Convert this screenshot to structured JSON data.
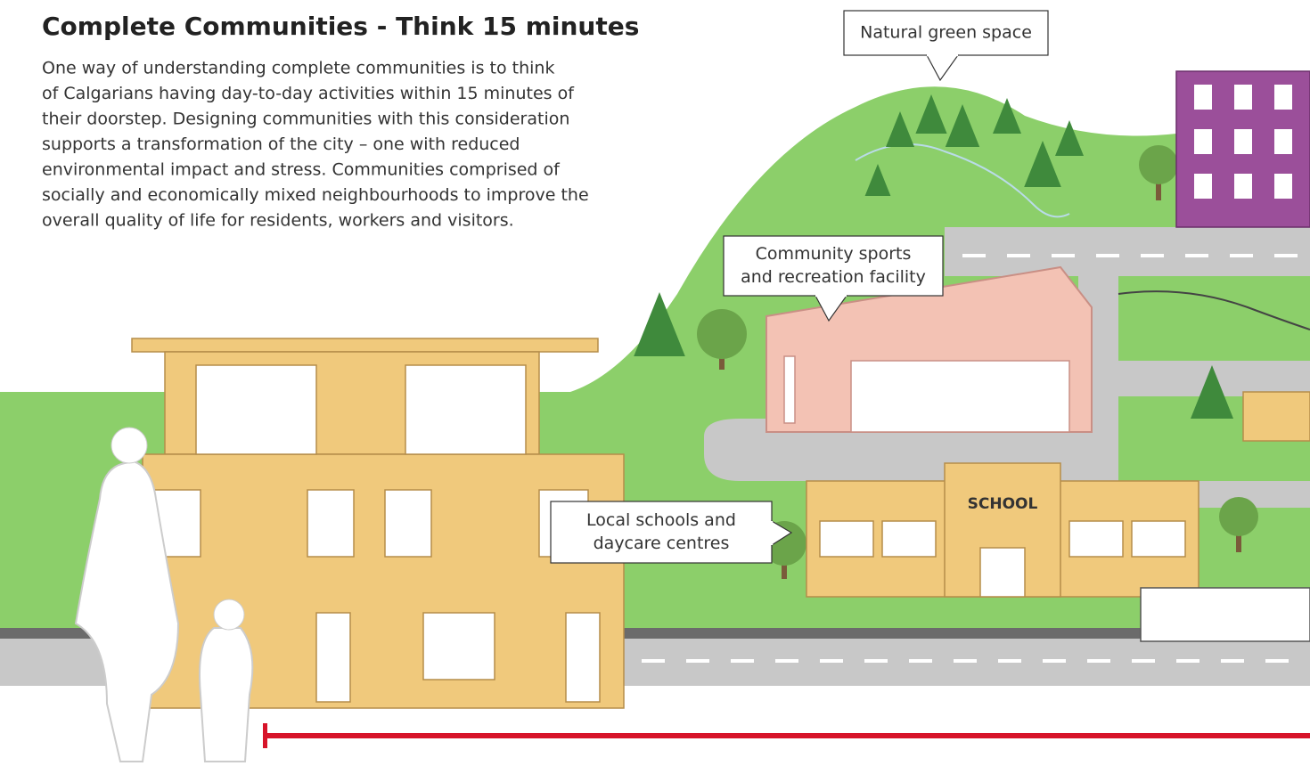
{
  "header": {
    "title": "Complete Communities - Think 15 minutes",
    "body": [
      "One way of understanding complete communities is to think",
      "of Calgarians having day-to-day activities within 15 minutes of",
      "their doorstep. Designing communities with this consideration",
      "supports a transformation of the city – one with reduced",
      "environmental impact and stress. Communities comprised of",
      "socially and economically mixed neighbourhoods to improve the",
      "overall quality of life for residents, workers and visitors."
    ]
  },
  "callouts": [
    {
      "lines": [
        "Natural green space"
      ]
    },
    {
      "lines": [
        "Community sports",
        "and recreation facility"
      ]
    },
    {
      "lines": [
        "Local schools and",
        "daycare centres"
      ]
    }
  ],
  "signs": {
    "school": "SCHOOL"
  }
}
